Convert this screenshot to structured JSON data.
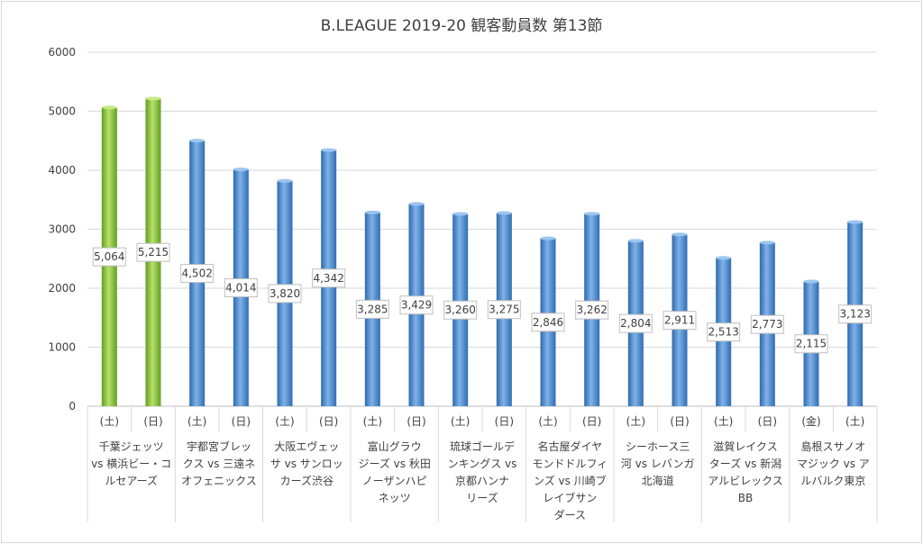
{
  "chart_data": {
    "type": "bar",
    "title": "B.LEAGUE 2019-20 観客動員数 第13節",
    "ylim": [
      0,
      6000
    ],
    "yticks": [
      "0",
      "1000",
      "2000",
      "3000",
      "4000",
      "5000",
      "6000"
    ],
    "grid": true,
    "values": [
      5064,
      5215,
      4502,
      4014,
      3820,
      4342,
      3285,
      3429,
      3260,
      3275,
      2846,
      3262,
      2804,
      2911,
      2513,
      2773,
      2115,
      3123
    ],
    "value_labels": [
      "5,064",
      "5,215",
      "4,502",
      "4,014",
      "3,820",
      "4,342",
      "3,285",
      "3,429",
      "3,260",
      "3,275",
      "2,846",
      "3,262",
      "2,804",
      "2,911",
      "2,513",
      "2,773",
      "2,115",
      "3,123"
    ],
    "days": [
      "(土)",
      "(日)",
      "(土)",
      "(日)",
      "(土)",
      "(日)",
      "(土)",
      "(日)",
      "(土)",
      "(日)",
      "(土)",
      "(日)",
      "(土)",
      "(日)",
      "(土)",
      "(日)",
      "(金)",
      "(土)"
    ],
    "highlight": [
      true,
      true,
      false,
      false,
      false,
      false,
      false,
      false,
      false,
      false,
      false,
      false,
      false,
      false,
      false,
      false,
      false,
      false
    ],
    "games": [
      [
        "千葉ジェッツ",
        "vs 横浜ビー・コ",
        "ルセアーズ"
      ],
      [
        "宇都宮ブレッ",
        "クス vs 三遠ネ",
        "オフェニックス"
      ],
      [
        "大阪エヴェッ",
        "サ vs サンロッ",
        "カーズ渋谷"
      ],
      [
        "富山グラウ",
        "ジーズ vs 秋田",
        "ノーザンハピ",
        "ネッツ"
      ],
      [
        "琉球ゴールデ",
        "ンキングス vs",
        "京都ハンナ",
        "リーズ"
      ],
      [
        "名古屋ダイヤ",
        "モンドドルフィ",
        "ンズ vs 川崎ブ",
        "レイブサン",
        "ダース"
      ],
      [
        "シーホース三",
        "河 vs レバンガ",
        "北海道"
      ],
      [
        "滋賀レイクス",
        "ターズ vs 新潟",
        "アルビレックス",
        "BB"
      ],
      [
        "島根スサノオ",
        "マジック vs ア",
        "ルバルク東京"
      ]
    ],
    "colors": {
      "blue": "#4f8fd1",
      "green": "#8cc63f"
    }
  }
}
